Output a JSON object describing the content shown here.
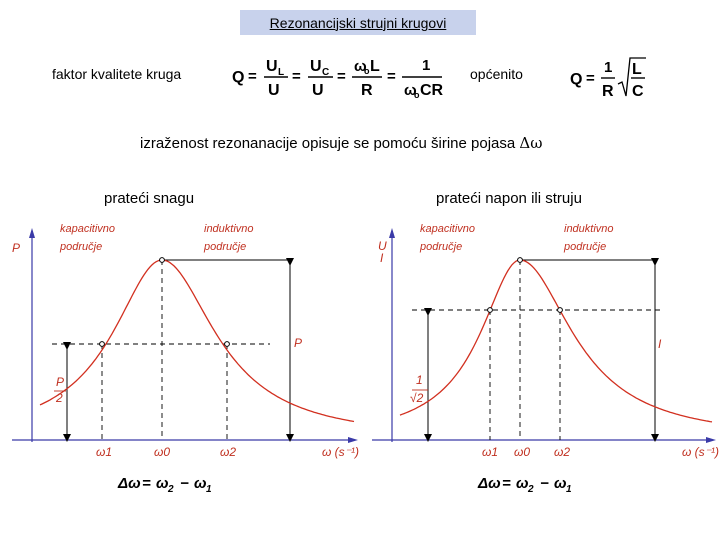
{
  "slide": {
    "title": "Rezonancijski strujni krugovi",
    "quality_label": "faktor kvalitete kruga",
    "general_label": "općenito",
    "bandwidth_text": "izraženost rezonanacije opisuje se pomoću širine pojasa",
    "bandwidth_symbol": "Δω",
    "left_caption": "prateći snagu",
    "right_caption": "prateći napon ili struju"
  },
  "formula_main": {
    "Q": "Q",
    "eq": "=",
    "UL": "U",
    "L": "L",
    "U": "U",
    "UC": "U",
    "C": "C",
    "w0L": "ω",
    "o": "o",
    "Lsym": "L",
    "R": "R",
    "one": "1",
    "w0CR": "ω",
    "CR": "CR"
  },
  "formula_general": {
    "Q": "Q",
    "eq": "=",
    "one": "1",
    "R": "R",
    "L": "L",
    "C": "C"
  },
  "left_plot": {
    "annotation_cap": [
      "kapacitivno",
      "područje"
    ],
    "annotation_ind": [
      "induktivno",
      "područje"
    ],
    "y_axis": "P",
    "level_label": "P",
    "half_label_top": "P",
    "half_label_bottom": "2",
    "curve_label": "P",
    "x_axis": "ω (s⁻¹)",
    "x_ticks": [
      "ω1",
      "ω0",
      "ω2"
    ],
    "formula": {
      "lhs": "Δω",
      "eq": "=",
      "w2": "ω",
      "s2": "2",
      "minus": "−",
      "w1": "ω",
      "s1": "1"
    }
  },
  "right_plot": {
    "annotation_cap": [
      "kapacitivno",
      "područje"
    ],
    "annotation_ind": [
      "induktivno",
      "područje"
    ],
    "y_axis_top": "U",
    "y_axis_bottom": "I",
    "level_label_top": "1",
    "level_label_bottom": "√2",
    "curve_label": "I",
    "x_axis": "ω (s⁻¹)",
    "x_ticks": [
      "ω1",
      "ω0",
      "ω2"
    ],
    "formula": {
      "lhs": "Δω",
      "eq": "=",
      "w2": "ω",
      "s2": "2",
      "minus": "−",
      "w1": "ω",
      "s1": "1"
    }
  },
  "colors": {
    "title_bg": "#c8d2ec",
    "curve": "#d23020",
    "annotation": "#c03020",
    "axes": "#3a3aa8",
    "dashed": "#000000"
  },
  "curve_data": {
    "left": {
      "x": "ω",
      "peak_at": "ω0",
      "half_power_level": 0.5,
      "half_power_points": [
        "ω1",
        "ω2"
      ]
    },
    "right": {
      "x": "ω",
      "peak_at": "ω0",
      "level": 0.707,
      "points": [
        "ω1",
        "ω2"
      ]
    }
  }
}
